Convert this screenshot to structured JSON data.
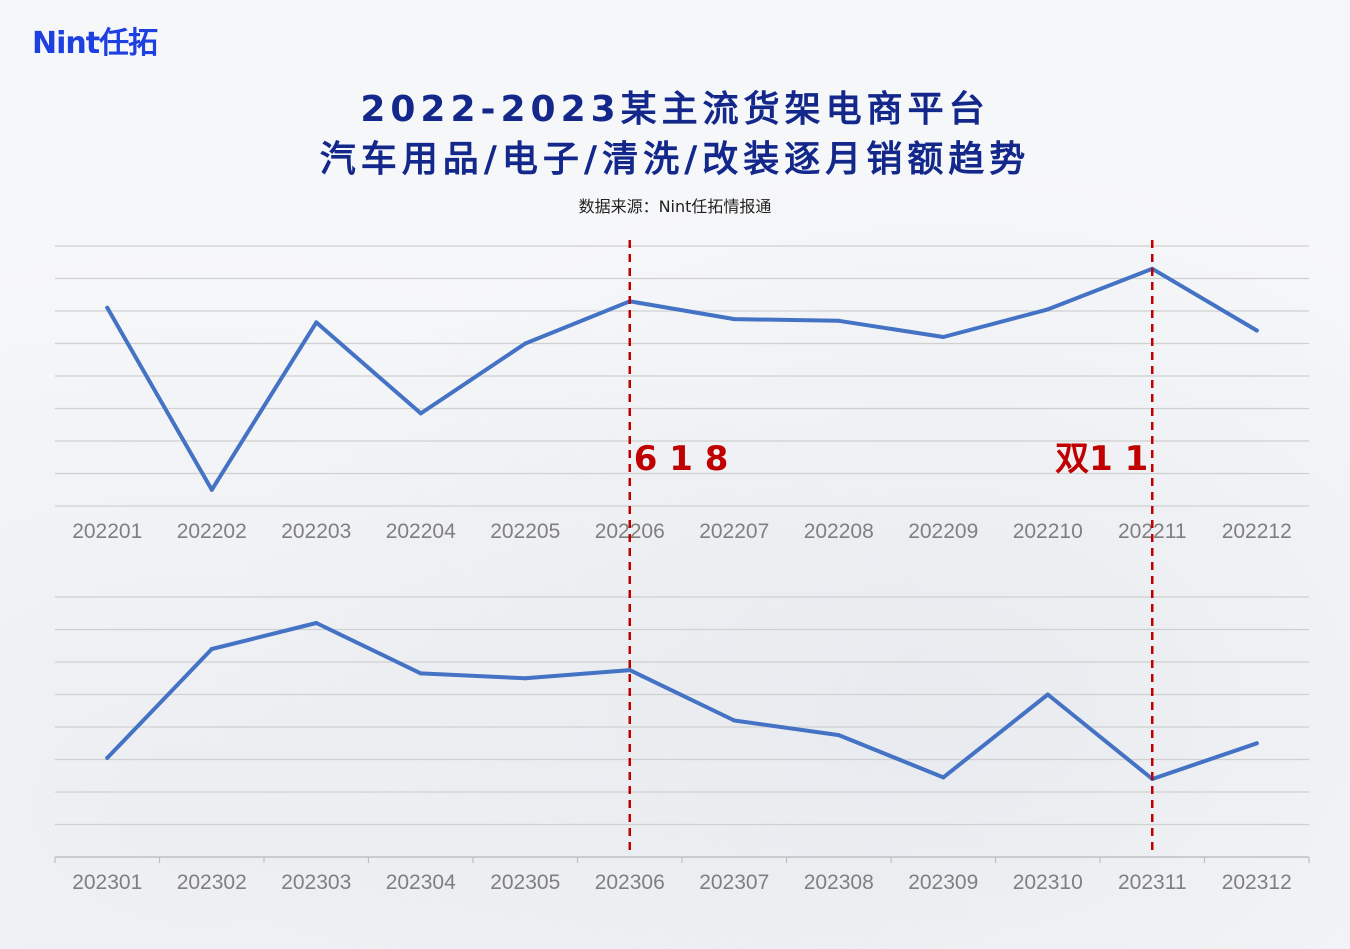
{
  "brand": {
    "logo_text": "Nint任拓"
  },
  "header": {
    "title_line1": "2022-2023某主流货架电商平台",
    "title_line2": "汽车用品/电子/清洗/改装逐月销额趋势",
    "source": "数据来源：Nint任拓情报通"
  },
  "colors": {
    "line": "#4472c4",
    "marker": "#c00000",
    "grid": "#d0d0d0",
    "title": "#13288a"
  },
  "chart_data": [
    {
      "type": "line",
      "categories": [
        "202201",
        "202202",
        "202203",
        "202204",
        "202205",
        "202206",
        "202207",
        "202208",
        "202209",
        "202210",
        "202211",
        "202212"
      ],
      "values": [
        6.1,
        0.5,
        5.65,
        2.85,
        5.0,
        6.3,
        5.75,
        5.7,
        5.2,
        6.05,
        7.3,
        5.4
      ],
      "ylim": [
        0,
        8
      ],
      "grid": true,
      "y_tick_labels_shown": false
    },
    {
      "type": "line",
      "categories": [
        "202301",
        "202302",
        "202303",
        "202304",
        "202305",
        "202306",
        "202307",
        "202308",
        "202309",
        "202310",
        "202311",
        "202312"
      ],
      "values": [
        3.05,
        6.4,
        7.2,
        5.65,
        5.5,
        5.75,
        4.2,
        3.75,
        2.45,
        5.0,
        2.4,
        3.5
      ],
      "ylim": [
        0,
        8
      ],
      "grid": true,
      "y_tick_labels_shown": false
    }
  ],
  "annotations": [
    {
      "label": "6 1 8",
      "category_index": 5
    },
    {
      "label": "双1 1",
      "category_index": 10
    }
  ]
}
